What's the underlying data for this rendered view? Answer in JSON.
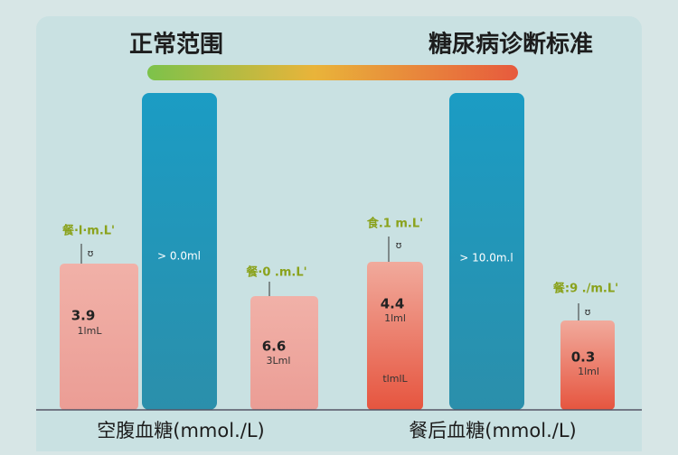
{
  "header": {
    "left_title": "正常范围",
    "right_title": "糖尿病诊断标准"
  },
  "groups": [
    {
      "label": "空腹血糖(mmol./L)",
      "bars": [
        {
          "top_label": "餐·l·m.L'",
          "marker": "ʊ",
          "value_text": "3.9",
          "unit_text": "1lmL"
        },
        {
          "inner_text": "> 0.0ml"
        },
        {
          "top_label": "餐·0 .m.L'",
          "value_text": "6.6",
          "unit_text": "3Lml"
        }
      ]
    },
    {
      "label": "餐后血糖(mmol./L)",
      "bars": [
        {
          "top_label": "食.1 m.L'",
          "marker": "ʊ",
          "value_text": "4.4",
          "unit_text": "1lml",
          "foot_text": "tlmlL"
        },
        {
          "inner_text": "> 10.0m.l"
        },
        {
          "top_label": "餐:9 ./m.L'",
          "marker": "ʊ",
          "value_text": "0.3",
          "unit_text": "1lml"
        }
      ]
    }
  ]
}
